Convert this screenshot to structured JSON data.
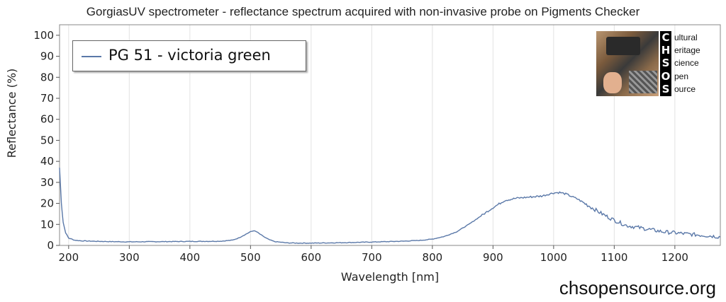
{
  "chart_data": {
    "type": "line",
    "title": "GorgiasUV spectrometer - reflectance spectrum acquired with non-invasive probe on Pigments Checker",
    "xlabel": "Wavelength [nm]",
    "ylabel": "Reflectance (%)",
    "xlim": [
      185,
      1275
    ],
    "ylim": [
      0,
      105
    ],
    "xticks": [
      200,
      300,
      400,
      500,
      600,
      700,
      800,
      900,
      1000,
      1100,
      1200
    ],
    "yticks": [
      0,
      10,
      20,
      30,
      40,
      50,
      60,
      70,
      80,
      90,
      100
    ],
    "grid": "vertical",
    "legend_position": "top-left",
    "series": [
      {
        "name": "PG 51 - victoria green",
        "color": "#5a78a8",
        "x": [
          185,
          188,
          191,
          195,
          200,
          210,
          220,
          240,
          270,
          300,
          350,
          400,
          450,
          470,
          480,
          490,
          500,
          505,
          510,
          520,
          530,
          540,
          560,
          580,
          600,
          650,
          700,
          750,
          780,
          800,
          820,
          840,
          860,
          880,
          900,
          920,
          940,
          960,
          980,
          1000,
          1010,
          1020,
          1040,
          1060,
          1080,
          1100,
          1120,
          1150,
          1180,
          1200,
          1230,
          1260,
          1275
        ],
        "y": [
          37,
          20,
          11,
          6,
          3.5,
          2.5,
          2.2,
          2,
          1.8,
          1.7,
          1.8,
          1.9,
          2,
          2.5,
          3.5,
          5,
          6.5,
          7,
          6.5,
          4.5,
          2.8,
          1.8,
          1.2,
          1.1,
          1.1,
          1.3,
          1.6,
          2,
          2.4,
          3,
          4.3,
          6.5,
          10,
          14,
          18,
          21.5,
          22.5,
          23,
          23.5,
          25,
          25.2,
          24.5,
          22,
          18.5,
          15,
          12,
          9.5,
          8,
          6.5,
          6,
          5.2,
          4.5,
          4
        ]
      }
    ]
  },
  "legend": {
    "label": "PG 51 - victoria green"
  },
  "logo": {
    "letters": [
      "C",
      "H",
      "S",
      "O",
      "S"
    ],
    "words": [
      "ultural",
      "eritage",
      "cience",
      "pen",
      "ource"
    ]
  },
  "site_url": "chsopensource.org"
}
